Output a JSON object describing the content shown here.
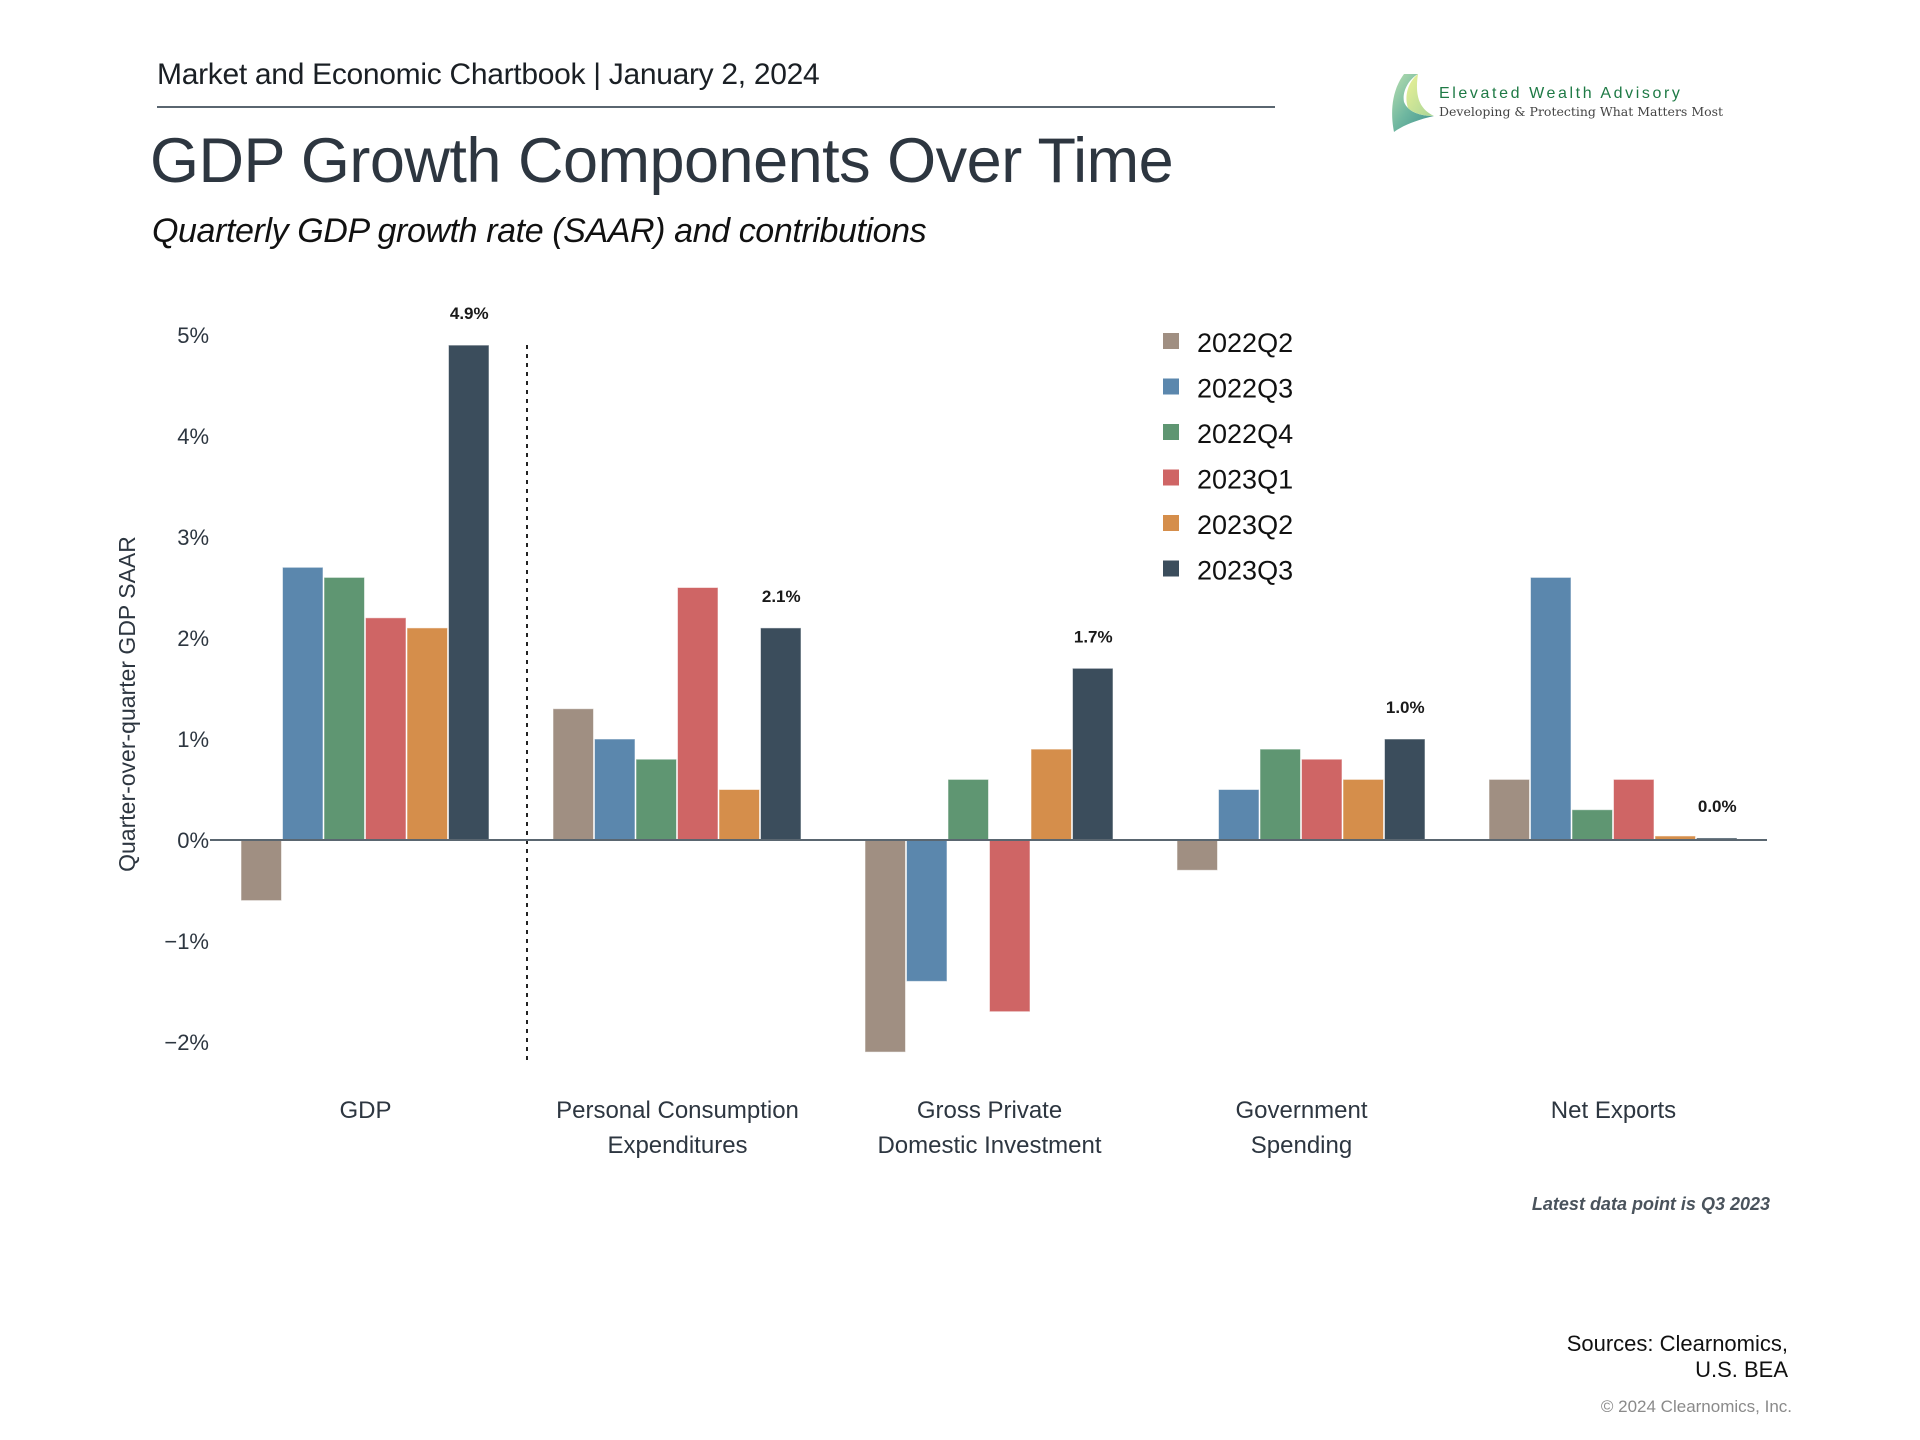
{
  "header": {
    "chartbook": "Market and Economic Chartbook | January 2, 2024"
  },
  "logo": {
    "name": "Elevated Wealth Advisory",
    "tagline": "Developing & Protecting What Matters Most",
    "icon": "sail-leaf-logo-icon"
  },
  "title": "GDP Growth Components Over Time",
  "subtitle": "Quarterly GDP growth rate (SAAR) and contributions",
  "chart_data": {
    "type": "bar",
    "title": "GDP Growth Components Over Time",
    "subtitle": "Quarterly GDP growth rate (SAAR) and contributions",
    "xlabel": "",
    "ylabel": "Quarter-over-quarter GDP SAAR",
    "ylim": [
      -2.2,
      5.2
    ],
    "yticks": [
      -2,
      -1,
      0,
      1,
      2,
      3,
      4,
      5
    ],
    "ytick_labels": [
      "−2%",
      "−1%",
      "0%",
      "1%",
      "2%",
      "3%",
      "4%",
      "5%"
    ],
    "grid": false,
    "legend_position": "top-right",
    "divider_after_category": "GDP",
    "categories": [
      [
        "GDP"
      ],
      [
        "Personal Consumption",
        "Expenditures"
      ],
      [
        "Gross Private",
        "Domestic Investment"
      ],
      [
        "Government",
        "Spending"
      ],
      [
        "Net Exports"
      ]
    ],
    "series": [
      {
        "name": "2022Q2",
        "color": "#a08f82",
        "values": [
          -0.6,
          1.3,
          -2.1,
          -0.3,
          0.6
        ]
      },
      {
        "name": "2022Q3",
        "color": "#5b87ad",
        "values": [
          2.7,
          1.0,
          -1.4,
          0.5,
          2.6
        ]
      },
      {
        "name": "2022Q4",
        "color": "#5f9672",
        "values": [
          2.6,
          0.8,
          0.6,
          0.9,
          0.3
        ]
      },
      {
        "name": "2023Q1",
        "color": "#cf6565",
        "values": [
          2.2,
          2.5,
          -1.7,
          0.8,
          0.6
        ]
      },
      {
        "name": "2023Q2",
        "color": "#d58e4b",
        "values": [
          2.1,
          0.5,
          0.9,
          0.6,
          0.04
        ]
      },
      {
        "name": "2023Q3",
        "color": "#3b4d5c",
        "values": [
          4.9,
          2.1,
          1.7,
          1.0,
          0.02
        ]
      }
    ],
    "data_labels": {
      "series": "2023Q3",
      "texts": [
        "4.9%",
        "2.1%",
        "1.7%",
        "1.0%",
        "0.0%"
      ]
    },
    "note": "Latest data point is Q3 2023"
  },
  "footer": {
    "sources_line1": "Sources: Clearnomics,",
    "sources_line2": "U.S. BEA",
    "copyright": "© 2024 Clearnomics, Inc."
  }
}
